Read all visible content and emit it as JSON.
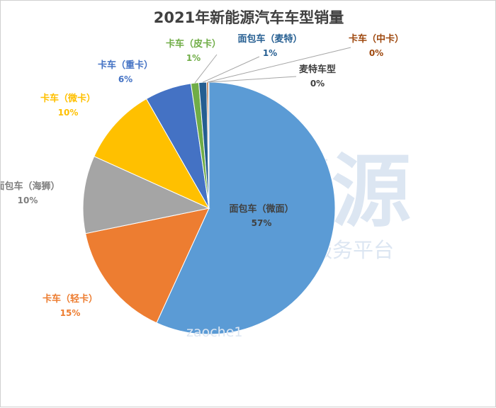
{
  "chart_data": {
    "type": "pie",
    "title": "2021年新能源汽车车型销量",
    "slices": [
      {
        "name": "面包车（微面）",
        "value": 57,
        "label": "57%",
        "color": "#5b9bd5"
      },
      {
        "name": "卡车（轻卡）",
        "value": 15,
        "label": "15%",
        "color": "#ed7d31"
      },
      {
        "name": "面包车（海狮）",
        "value": 10,
        "label": "10%",
        "color": "#a5a5a5"
      },
      {
        "name": "卡车（微卡）",
        "value": 10,
        "label": "10%",
        "color": "#ffc000"
      },
      {
        "name": "卡车（重卡）",
        "value": 6,
        "label": "6%",
        "color": "#4472c4"
      },
      {
        "name": "卡车（皮卡）",
        "value": 1,
        "label": "1%",
        "color": "#70ad47"
      },
      {
        "name": "面包车（麦特）",
        "value": 1,
        "label": "1%",
        "color": "#255e91"
      },
      {
        "name": "卡车（中卡）",
        "value": 0.2,
        "label": "0%",
        "color": "#9e480e"
      },
      {
        "name": "麦特车型",
        "value": 0.1,
        "label": "0%",
        "color": "#636363"
      }
    ],
    "legend": "none",
    "label_colors": [
      "#404040",
      "#ed7d31",
      "#7f7f7f",
      "#ffc000",
      "#4472c4",
      "#70ad47",
      "#255e91",
      "#9e480e",
      "#404040"
    ]
  },
  "watermark": {
    "logo_text": "电车资源",
    "tagline": "新能源汽车一站式信息服务平台",
    "url_text": "zaoche1",
    "color": "#dce6f2"
  }
}
